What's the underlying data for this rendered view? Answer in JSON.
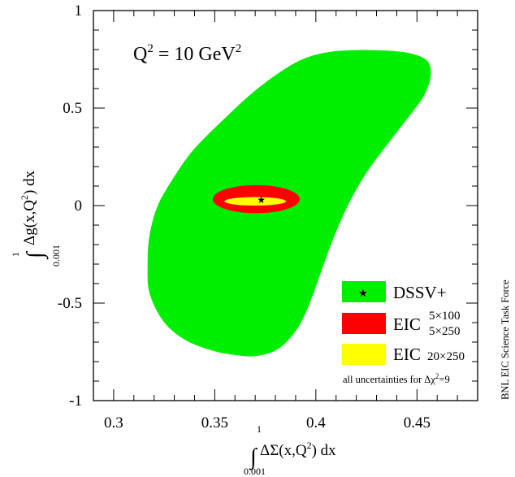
{
  "chart_data": {
    "type": "contour",
    "xlim": [
      0.29,
      0.48
    ],
    "ylim": [
      -1,
      1
    ],
    "x_ticks": [
      "0.3",
      "0.35",
      "0.4",
      "0.45"
    ],
    "x_tick_values": [
      0.3,
      0.35,
      0.4,
      0.45
    ],
    "y_ticks": [
      "1",
      "0.5",
      "0",
      "-0.5",
      "-1"
    ],
    "y_tick_values": [
      1,
      0.5,
      0,
      -0.5,
      -1
    ],
    "annotation": {
      "q_symbol": "Q",
      "q_power": "2",
      "equals": "= 10 GeV",
      "unit_power": "2"
    },
    "xlabel": {
      "integral_upper": "1",
      "integral_lower": "0.001",
      "body": "ΔΣ(x,Q",
      "power": "2",
      "tail": ") dx"
    },
    "ylabel": {
      "integral_upper": "1",
      "integral_lower": "0.001",
      "body": "Δg(x,Q",
      "power": "2",
      "tail": ") dx"
    },
    "credit": "BNL EIC Science Task Force",
    "footnote": {
      "prefix": "all uncertainties for Δχ",
      "power": "2",
      "suffix": "=9"
    },
    "best_fit": {
      "x": 0.373,
      "y": 0.03,
      "marker": "★"
    },
    "series": [
      {
        "name": "DSSV+",
        "color": "#00ee00",
        "outline": [
          [
            0.361,
            -0.765
          ],
          [
            0.35,
            -0.745
          ],
          [
            0.336,
            -0.69
          ],
          [
            0.325,
            -0.595
          ],
          [
            0.318,
            -0.45
          ],
          [
            0.317,
            -0.3
          ],
          [
            0.318,
            -0.15
          ],
          [
            0.322,
            0.0
          ],
          [
            0.33,
            0.145
          ],
          [
            0.338,
            0.265
          ],
          [
            0.346,
            0.355
          ],
          [
            0.356,
            0.455
          ],
          [
            0.368,
            0.57
          ],
          [
            0.382,
            0.68
          ],
          [
            0.395,
            0.755
          ],
          [
            0.41,
            0.79
          ],
          [
            0.43,
            0.795
          ],
          [
            0.446,
            0.78
          ],
          [
            0.455,
            0.74
          ],
          [
            0.4565,
            0.66
          ],
          [
            0.453,
            0.56
          ],
          [
            0.446,
            0.46
          ],
          [
            0.437,
            0.34
          ],
          [
            0.4255,
            0.18
          ],
          [
            0.418,
            0.05
          ],
          [
            0.412,
            -0.08
          ],
          [
            0.4065,
            -0.22
          ],
          [
            0.401,
            -0.38
          ],
          [
            0.396,
            -0.52
          ],
          [
            0.39,
            -0.64
          ],
          [
            0.381,
            -0.735
          ],
          [
            0.37,
            -0.77
          ]
        ]
      },
      {
        "name": "EIC",
        "label_base": "EIC",
        "label_top": "5×100",
        "label_bottom": "5×250",
        "color": "#ff0000",
        "ellipse": {
          "cx": 0.3705,
          "cy": 0.033,
          "rx": 0.0215,
          "ry": 0.072
        }
      },
      {
        "name": "EIC",
        "label_base": "EIC",
        "label_suffix": "20×250",
        "color": "#ffff00",
        "ellipse": {
          "cx": 0.37,
          "cy": 0.022,
          "rx": 0.0152,
          "ry": 0.022
        }
      }
    ]
  }
}
